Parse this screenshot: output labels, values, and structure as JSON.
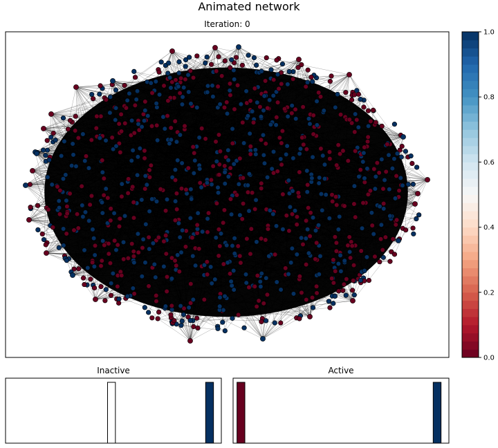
{
  "figure": {
    "title": "Animated network",
    "subtitle": "Iteration: 0"
  },
  "colorbar": {
    "ticks": [
      "0.0",
      "0.2",
      "0.4",
      "0.6",
      "0.8",
      "1.0"
    ],
    "colormap": "RdBu",
    "levels": 40
  },
  "colors": {
    "inactive_node": "#67001f",
    "active_node": "#053061",
    "edge": "#000000",
    "axes": "#000000"
  },
  "chart_data": [
    {
      "type": "scatter",
      "title": "Iteration: 0",
      "description_values": "network graph; node color 0 (red) or 1 (blue)",
      "node_count": 1000,
      "node_values": [
        0,
        1
      ],
      "xlabel": "",
      "ylabel": "",
      "grid": false
    },
    {
      "type": "bar",
      "title": "Inactive",
      "categories": [
        "0.0",
        "0.5",
        "1.0"
      ],
      "values": [
        0,
        1,
        1
      ],
      "bar_colors": [
        "#67001f",
        "#ffffff",
        "#053061"
      ],
      "grid": false
    },
    {
      "type": "bar",
      "title": "Active",
      "categories": [
        "0.0",
        "0.5",
        "1.0"
      ],
      "values": [
        1,
        0,
        1
      ],
      "bar_colors": [
        "#67001f",
        "#ffffff",
        "#053061"
      ],
      "grid": false
    }
  ]
}
